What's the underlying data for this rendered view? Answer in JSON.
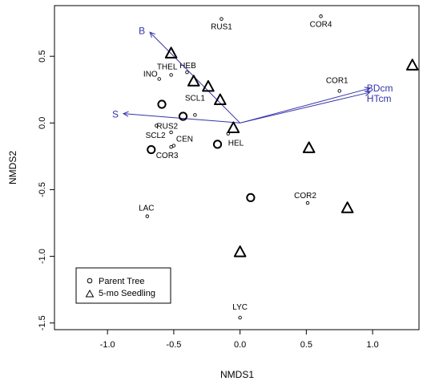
{
  "chart_data": {
    "type": "scatter",
    "title": "",
    "xlabel": "NMDS1",
    "ylabel": "NMDS2",
    "xlim": [
      -1.4,
      1.35
    ],
    "ylim": [
      -1.55,
      0.88
    ],
    "xticks": [
      -1.0,
      -0.5,
      0.0,
      0.5,
      1.0
    ],
    "xtick_labels": [
      "-1.0",
      "-0.5",
      "0.0",
      "0.5",
      "1.0"
    ],
    "yticks": [
      -1.5,
      -1.0,
      -0.5,
      0.0,
      0.5
    ],
    "ytick_labels": [
      "-1.5",
      "-1.0",
      "-0.5",
      "0.0",
      "0.5"
    ],
    "legend": {
      "position": "bottom-left",
      "items": [
        {
          "label": "Parent Tree",
          "marker": "circle"
        },
        {
          "label": "5-mo Seedling",
          "marker": "triangle"
        }
      ]
    },
    "series": [
      {
        "name": "Parent Tree",
        "marker": "circle",
        "points": [
          {
            "x": -0.59,
            "y": 0.14
          },
          {
            "x": -0.43,
            "y": 0.05
          },
          {
            "x": -0.67,
            "y": -0.2
          },
          {
            "x": -0.17,
            "y": -0.16
          },
          {
            "x": 0.08,
            "y": -0.56
          }
        ]
      },
      {
        "name": "5-mo Seedling",
        "marker": "triangle",
        "points": [
          {
            "x": -0.52,
            "y": 0.52
          },
          {
            "x": -0.35,
            "y": 0.31
          },
          {
            "x": -0.24,
            "y": 0.27
          },
          {
            "x": -0.15,
            "y": 0.17
          },
          {
            "x": -0.05,
            "y": -0.04
          },
          {
            "x": 0.52,
            "y": -0.19
          },
          {
            "x": 1.3,
            "y": 0.43
          },
          {
            "x": 0.81,
            "y": -0.64
          },
          {
            "x": 0.0,
            "y": -0.97
          }
        ]
      }
    ],
    "species": [
      {
        "label": "RUS1",
        "x": -0.14,
        "y": 0.78,
        "anchor": "middle",
        "dx": 0,
        "dy": 13
      },
      {
        "label": "COR4",
        "x": 0.61,
        "y": 0.8,
        "anchor": "middle",
        "dx": 0,
        "dy": 13
      },
      {
        "label": "HEB",
        "x": -0.4,
        "y": 0.38,
        "anchor": "middle",
        "dx": 1,
        "dy": -5
      },
      {
        "label": "INO",
        "x": -0.61,
        "y": 0.33,
        "anchor": "end",
        "dx": -2,
        "dy": -3
      },
      {
        "label": "THEL",
        "x": -0.52,
        "y": 0.36,
        "anchor": "middle",
        "dx": -5,
        "dy": -7
      },
      {
        "label": "COR1",
        "x": 0.75,
        "y": 0.24,
        "anchor": "middle",
        "dx": -3,
        "dy": -10
      },
      {
        "label": "SCL1",
        "x": -0.34,
        "y": 0.06,
        "anchor": "middle",
        "dx": 0,
        "dy": -18
      },
      {
        "label": "RUS2",
        "x": -0.63,
        "y": -0.02,
        "anchor": "start",
        "dx": 0,
        "dy": 4
      },
      {
        "label": "SCL2",
        "x": -0.52,
        "y": -0.07,
        "anchor": "end",
        "dx": -7,
        "dy": 7
      },
      {
        "label": "CEN",
        "x": -0.5,
        "y": -0.17,
        "anchor": "start",
        "dx": 3,
        "dy": -5
      },
      {
        "label": "COR3",
        "x": -0.52,
        "y": -0.18,
        "anchor": "middle",
        "dx": -5,
        "dy": 14
      },
      {
        "label": "HEL",
        "x": -0.09,
        "y": -0.08,
        "anchor": "start",
        "dx": 0,
        "dy": 15
      },
      {
        "label": "COR2",
        "x": 0.51,
        "y": -0.6,
        "anchor": "middle",
        "dx": -3,
        "dy": -6
      },
      {
        "label": "LAC",
        "x": -0.7,
        "y": -0.7,
        "anchor": "middle",
        "dx": -1,
        "dy": -7
      },
      {
        "label": "LYC",
        "x": 0.0,
        "y": -1.46,
        "anchor": "middle",
        "dx": 0,
        "dy": -10
      }
    ],
    "vectors": [
      {
        "label": "B",
        "x": -0.68,
        "y": 0.68,
        "anchor": "end",
        "dx": -6,
        "dy": -2
      },
      {
        "label": "S",
        "x": -0.88,
        "y": 0.07,
        "anchor": "end",
        "dx": -6,
        "dy": 1
      },
      {
        "label": "BDcm",
        "x": 0.98,
        "y": 0.26,
        "anchor": "start",
        "dx": -4,
        "dy": 0
      },
      {
        "label": "HTcm",
        "x": 0.98,
        "y": 0.23,
        "anchor": "start",
        "dx": -4,
        "dy": 8
      }
    ],
    "vector_color": "#3333aa"
  }
}
